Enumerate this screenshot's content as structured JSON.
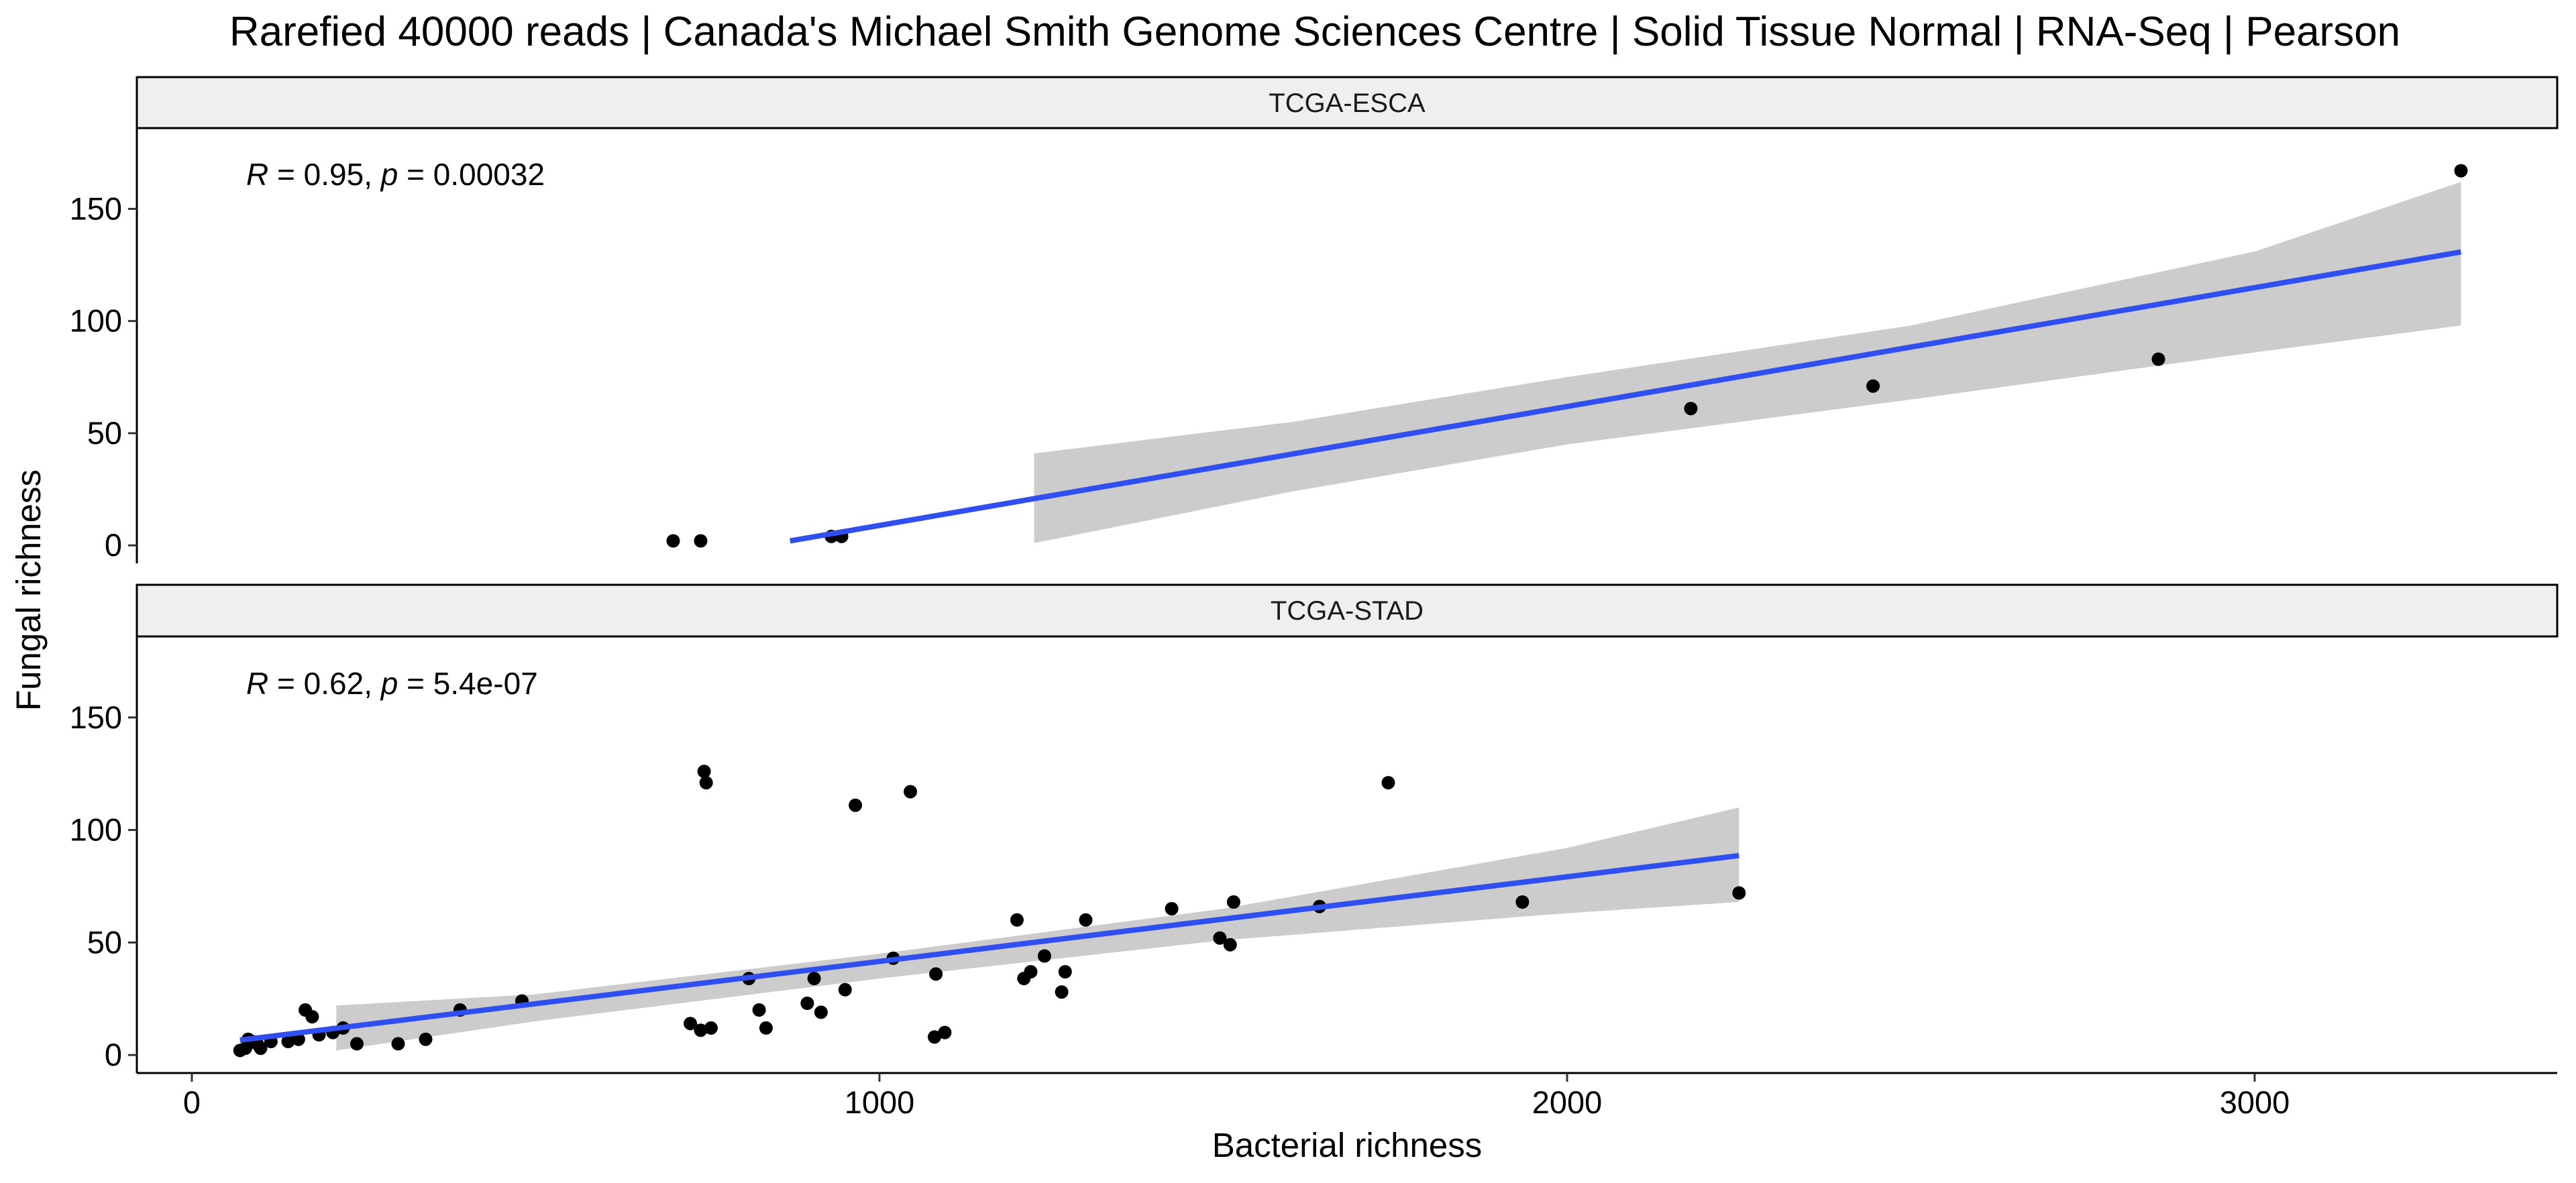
{
  "chart_data": {
    "type": "scatter",
    "title": "Rarefied 40000 reads | Canada's Michael Smith Genome Sciences Centre | Solid Tissue Normal | RNA-Seq | Pearson",
    "xlabel": "Bacterial richness",
    "ylabel": "Fungal richness",
    "xlim": [
      -80,
      3440
    ],
    "ylim": [
      -8,
      186
    ],
    "x_ticks": [
      0,
      1000,
      2000,
      3000
    ],
    "x_tick_labels": [
      "0",
      "1000",
      "2000",
      "3000"
    ],
    "y_ticks": [
      0,
      50,
      100,
      150
    ],
    "y_tick_labels": [
      "0",
      "50",
      "100",
      "150"
    ],
    "grid": false,
    "colors": {
      "points": "#000000",
      "fit_line": "#2f4ff0",
      "confidence_band": "#cccccc",
      "strip_fill": "#efefef",
      "strip_border": "#000000"
    },
    "panels": [
      {
        "strip": "TCGA-ESCA",
        "annotation": {
          "R_symbol": "R",
          "R_text": " = 0.95, ",
          "p_symbol": "p",
          "p_text": " = 0.00032"
        },
        "points": [
          {
            "x": 700,
            "y": 2
          },
          {
            "x": 740,
            "y": 2
          },
          {
            "x": 930,
            "y": 4
          },
          {
            "x": 945,
            "y": 4
          },
          {
            "x": 2180,
            "y": 61
          },
          {
            "x": 2445,
            "y": 71
          },
          {
            "x": 2860,
            "y": 83
          },
          {
            "x": 3300,
            "y": 167
          }
        ],
        "fit": {
          "x_start": 870,
          "x_end": 3300,
          "slope": 0.053,
          "intercept": -44.1
        },
        "band": {
          "x": [
            1225,
            1600,
            2000,
            2500,
            3000,
            3300
          ],
          "lower": [
            1,
            24,
            45,
            65,
            86,
            98
          ],
          "upper": [
            41,
            55,
            75,
            98,
            131,
            162
          ]
        }
      },
      {
        "strip": "TCGA-STAD",
        "annotation": {
          "R_symbol": "R",
          "R_text": " = 0.62, ",
          "p_symbol": "p",
          "p_text": " = 5.4e-07"
        },
        "points": [
          {
            "x": 70,
            "y": 2
          },
          {
            "x": 78,
            "y": 3
          },
          {
            "x": 82,
            "y": 7
          },
          {
            "x": 88,
            "y": 6
          },
          {
            "x": 95,
            "y": 5
          },
          {
            "x": 100,
            "y": 3
          },
          {
            "x": 115,
            "y": 6
          },
          {
            "x": 140,
            "y": 6
          },
          {
            "x": 155,
            "y": 7
          },
          {
            "x": 165,
            "y": 20
          },
          {
            "x": 175,
            "y": 17
          },
          {
            "x": 185,
            "y": 9
          },
          {
            "x": 205,
            "y": 10
          },
          {
            "x": 220,
            "y": 12
          },
          {
            "x": 240,
            "y": 5
          },
          {
            "x": 300,
            "y": 5
          },
          {
            "x": 340,
            "y": 7
          },
          {
            "x": 390,
            "y": 20
          },
          {
            "x": 480,
            "y": 24
          },
          {
            "x": 725,
            "y": 14
          },
          {
            "x": 740,
            "y": 11
          },
          {
            "x": 745,
            "y": 126
          },
          {
            "x": 748,
            "y": 121
          },
          {
            "x": 755,
            "y": 12
          },
          {
            "x": 810,
            "y": 34
          },
          {
            "x": 825,
            "y": 20
          },
          {
            "x": 835,
            "y": 12
          },
          {
            "x": 895,
            "y": 23
          },
          {
            "x": 905,
            "y": 34
          },
          {
            "x": 915,
            "y": 19
          },
          {
            "x": 950,
            "y": 29
          },
          {
            "x": 965,
            "y": 111
          },
          {
            "x": 1020,
            "y": 43
          },
          {
            "x": 1045,
            "y": 117
          },
          {
            "x": 1080,
            "y": 8
          },
          {
            "x": 1082,
            "y": 36
          },
          {
            "x": 1095,
            "y": 10
          },
          {
            "x": 1200,
            "y": 60
          },
          {
            "x": 1210,
            "y": 34
          },
          {
            "x": 1220,
            "y": 37
          },
          {
            "x": 1240,
            "y": 44
          },
          {
            "x": 1265,
            "y": 28
          },
          {
            "x": 1270,
            "y": 37
          },
          {
            "x": 1300,
            "y": 60
          },
          {
            "x": 1425,
            "y": 65
          },
          {
            "x": 1495,
            "y": 52
          },
          {
            "x": 1510,
            "y": 49
          },
          {
            "x": 1515,
            "y": 68
          },
          {
            "x": 1640,
            "y": 66
          },
          {
            "x": 1740,
            "y": 121
          },
          {
            "x": 1935,
            "y": 68
          },
          {
            "x": 2250,
            "y": 72
          }
        ],
        "fit": {
          "x_start": 70,
          "x_end": 2250,
          "slope": 0.0376,
          "intercept": 4.0
        },
        "band": {
          "x": [
            210,
            500,
            1000,
            1500,
            2000,
            2250
          ],
          "lower": [
            2,
            15,
            34,
            51,
            63,
            68
          ],
          "upper": [
            22,
            27,
            45,
            65,
            92,
            110
          ]
        }
      }
    ]
  }
}
